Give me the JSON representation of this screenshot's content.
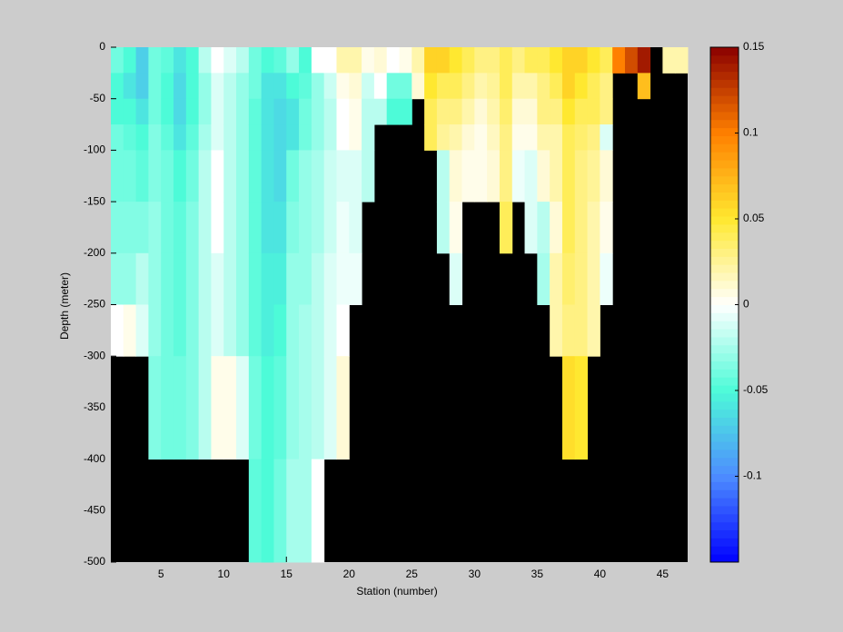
{
  "chart_data": {
    "type": "heatmap",
    "xlabel": "Station (number)",
    "ylabel": "Depth (meter)",
    "x": [
      1,
      2,
      3,
      4,
      5,
      6,
      7,
      8,
      9,
      10,
      11,
      12,
      13,
      14,
      15,
      16,
      17,
      18,
      19,
      20,
      21,
      22,
      23,
      24,
      25,
      26,
      27,
      28,
      29,
      30,
      31,
      32,
      33,
      34,
      35,
      36,
      37,
      38,
      39,
      40,
      41,
      42,
      43,
      44,
      45,
      46
    ],
    "y": [
      0,
      -25,
      -50,
      -75,
      -100,
      -150,
      -200,
      -250,
      -300,
      -400,
      -500
    ],
    "z": [
      [
        -0.04,
        -0.05,
        -0.05,
        -0.04,
        -0.04,
        -0.035,
        -0.03,
        0,
        null,
        null
      ],
      [
        -0.05,
        -0.06,
        -0.05,
        -0.045,
        -0.04,
        -0.035,
        -0.03,
        0.005,
        null,
        null
      ],
      [
        -0.07,
        -0.07,
        -0.06,
        -0.05,
        -0.045,
        -0.035,
        -0.02,
        -0.01,
        null,
        null
      ],
      [
        -0.04,
        -0.04,
        -0.04,
        -0.035,
        -0.035,
        -0.03,
        -0.03,
        -0.03,
        -0.035,
        null
      ],
      [
        -0.045,
        -0.05,
        -0.05,
        -0.045,
        -0.04,
        -0.04,
        -0.04,
        -0.04,
        -0.04,
        null
      ],
      [
        -0.06,
        -0.065,
        -0.065,
        -0.06,
        -0.05,
        -0.045,
        -0.045,
        -0.045,
        -0.04,
        null
      ],
      [
        -0.05,
        -0.05,
        -0.05,
        -0.045,
        -0.04,
        -0.035,
        -0.035,
        -0.035,
        -0.035,
        null
      ],
      [
        -0.02,
        -0.03,
        -0.03,
        -0.025,
        -0.02,
        -0.02,
        -0.02,
        -0.02,
        -0.02,
        null
      ],
      [
        0,
        -0.01,
        -0.01,
        -0.01,
        0,
        0,
        -0.01,
        -0.01,
        0.005,
        null
      ],
      [
        -0.01,
        -0.02,
        -0.02,
        -0.02,
        -0.02,
        -0.02,
        -0.02,
        -0.02,
        0.005,
        null
      ],
      [
        -0.02,
        -0.03,
        -0.03,
        -0.03,
        -0.03,
        -0.03,
        -0.03,
        -0.03,
        -0.01,
        null
      ],
      [
        -0.04,
        -0.04,
        -0.045,
        -0.045,
        -0.045,
        -0.045,
        -0.045,
        -0.045,
        -0.04,
        -0.045
      ],
      [
        -0.05,
        -0.06,
        -0.06,
        -0.06,
        -0.06,
        -0.06,
        -0.055,
        -0.055,
        -0.05,
        -0.05
      ],
      [
        -0.045,
        -0.06,
        -0.065,
        -0.065,
        -0.065,
        -0.06,
        -0.055,
        -0.05,
        -0.045,
        -0.04
      ],
      [
        -0.03,
        -0.05,
        -0.06,
        -0.06,
        -0.04,
        -0.035,
        -0.03,
        -0.03,
        -0.03,
        -0.025
      ],
      [
        -0.05,
        -0.045,
        -0.04,
        -0.04,
        -0.03,
        -0.03,
        -0.03,
        -0.025,
        -0.025,
        -0.025
      ],
      [
        0,
        -0.03,
        -0.03,
        -0.03,
        -0.025,
        -0.025,
        -0.02,
        -0.02,
        -0.02,
        0
      ],
      [
        0,
        -0.015,
        -0.02,
        -0.02,
        -0.015,
        -0.015,
        -0.01,
        -0.01,
        -0.01,
        null
      ],
      [
        0.02,
        0.005,
        0,
        0,
        -0.01,
        -0.005,
        -0.005,
        0,
        0.01,
        null
      ],
      [
        0.02,
        0.01,
        0.005,
        0.005,
        -0.01,
        -0.01,
        -0.005,
        null,
        null,
        null
      ],
      [
        0.005,
        -0.015,
        -0.02,
        -0.02,
        -0.02,
        null,
        null,
        null,
        null,
        null
      ],
      [
        0.01,
        0,
        -0.02,
        null,
        null,
        null,
        null,
        null,
        null,
        null
      ],
      [
        0,
        -0.04,
        -0.05,
        null,
        null,
        null,
        null,
        null,
        null,
        null
      ],
      [
        0.005,
        -0.04,
        -0.05,
        null,
        null,
        null,
        null,
        null,
        null,
        null
      ],
      [
        0.02,
        0.01,
        null,
        null,
        null,
        null,
        null,
        null,
        null,
        null
      ],
      [
        0.06,
        0.05,
        0.04,
        0.04,
        null,
        null,
        null,
        null,
        null,
        null
      ],
      [
        0.06,
        0.04,
        0.03,
        0.025,
        -0.02,
        -0.02,
        null,
        null,
        null,
        null
      ],
      [
        0.05,
        0.04,
        0.03,
        0.02,
        0.01,
        0.005,
        -0.01,
        null,
        null,
        null
      ],
      [
        0.04,
        0.03,
        0.02,
        0.01,
        0.005,
        null,
        null,
        null,
        null,
        null
      ],
      [
        0.03,
        0.02,
        0.01,
        0.005,
        0.005,
        null,
        null,
        null,
        null,
        null
      ],
      [
        0.03,
        0.025,
        0.02,
        0.015,
        0.01,
        null,
        null,
        null,
        null,
        null
      ],
      [
        0.04,
        0.04,
        0.035,
        0.03,
        0.03,
        0.04,
        null,
        null,
        null,
        null
      ],
      [
        0.03,
        0.02,
        0.01,
        0.005,
        -0.005,
        null,
        null,
        null,
        null,
        null
      ],
      [
        0.04,
        0.02,
        0.01,
        0.005,
        -0.01,
        -0.01,
        null,
        null,
        null,
        null
      ],
      [
        0.04,
        0.03,
        0.03,
        0.02,
        0.01,
        -0.02,
        -0.025,
        null,
        null,
        null
      ],
      [
        0.05,
        0.04,
        0.03,
        0.02,
        0.02,
        0.01,
        0.02,
        0.02,
        null,
        null
      ],
      [
        0.06,
        0.06,
        0.05,
        0.04,
        0.04,
        0.04,
        0.035,
        0.03,
        0.055,
        null
      ],
      [
        0.06,
        0.05,
        0.04,
        0.035,
        0.03,
        0.03,
        0.03,
        0.03,
        0.05,
        null
      ],
      [
        0.05,
        0.04,
        0.04,
        0.03,
        0.025,
        0.02,
        0.02,
        0.02,
        null,
        null
      ],
      [
        0.04,
        0.03,
        0.03,
        -0.01,
        0.01,
        0.005,
        -0.005,
        null,
        null,
        null
      ],
      [
        0.1,
        null,
        null,
        null,
        null,
        null,
        null,
        null,
        null,
        null
      ],
      [
        0.12,
        null,
        null,
        null,
        null,
        null,
        null,
        null,
        null,
        null
      ],
      [
        0.14,
        0.07,
        null,
        null,
        null,
        null,
        null,
        null,
        null,
        null
      ],
      [
        null,
        null,
        null,
        null,
        null,
        null,
        null,
        null,
        null,
        null
      ],
      [
        0.02,
        null,
        null,
        null,
        null,
        null,
        null,
        null,
        null,
        null
      ],
      [
        0.02,
        null,
        null,
        null,
        null,
        null,
        null,
        null,
        null,
        null
      ]
    ],
    "xlim": [
      1,
      47
    ],
    "xticks": [
      5,
      10,
      15,
      20,
      25,
      30,
      35,
      40,
      45
    ],
    "ylim": [
      -500,
      0
    ],
    "yticks": [
      0,
      -50,
      -100,
      -150,
      -200,
      -250,
      -300,
      -350,
      -400,
      -450,
      -500
    ],
    "clim": [
      -0.15,
      0.15
    ],
    "cticks": [
      0.15,
      0.1,
      0.05,
      0,
      -0.05,
      -0.1
    ],
    "colormap": [
      "#0000ff",
      "#4d8cff",
      "#4dfbd8",
      "#ffffff",
      "#ffe830",
      "#ff8000",
      "#8b0000"
    ],
    "nan_color": "#000000"
  }
}
